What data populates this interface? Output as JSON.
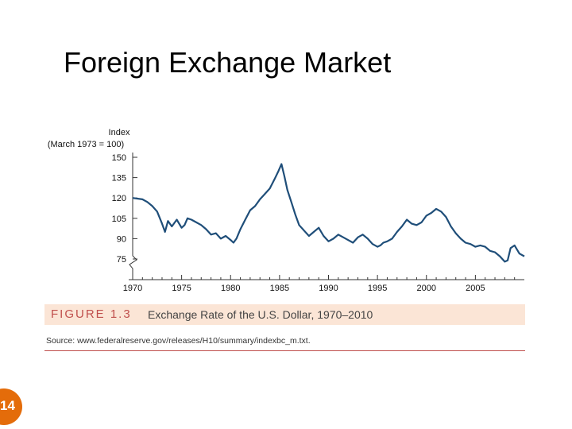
{
  "slide": {
    "title": "Foreign Exchange Market",
    "page_number": "14"
  },
  "figure": {
    "label": "FIGURE 1.3",
    "caption": "Exchange Rate of the U.S. Dollar, 1970–2010",
    "source": "Source: www.federalreserve.gov/releases/H10/summary/indexbc_m.txt."
  },
  "colors": {
    "line": "#1f4e79",
    "band": "#fbe5d6",
    "accent": "#c0504d",
    "badge": "#e46c0a"
  },
  "chart_data": {
    "type": "line",
    "title": "",
    "ylabel": "Index",
    "ylabel_sub": "(March 1973 = 100)",
    "xlim": [
      1970,
      2010
    ],
    "ylim": [
      70,
      155
    ],
    "xticks": [
      "1970",
      "1975",
      "1980",
      "1985",
      "1990",
      "1995",
      "2000",
      "2005"
    ],
    "yticks": [
      "150",
      "135",
      "120",
      "105",
      "90",
      "75"
    ],
    "axis_break": true,
    "grid": false,
    "series": [
      {
        "name": "",
        "x": [
          1970.0,
          1971.0,
          1971.5,
          1972.0,
          1972.5,
          1973.0,
          1973.3,
          1973.6,
          1974.0,
          1974.5,
          1975.0,
          1975.3,
          1975.6,
          1976.0,
          1976.5,
          1977.0,
          1977.5,
          1978.0,
          1978.5,
          1979.0,
          1979.5,
          1980.0,
          1980.3,
          1980.6,
          1981.0,
          1981.5,
          1982.0,
          1982.5,
          1983.0,
          1983.5,
          1984.0,
          1984.5,
          1984.9,
          1985.2,
          1985.5,
          1985.8,
          1986.2,
          1986.6,
          1987.0,
          1987.5,
          1988.0,
          1988.5,
          1989.0,
          1989.5,
          1990.0,
          1990.5,
          1991.0,
          1991.5,
          1992.0,
          1992.5,
          1993.0,
          1993.5,
          1994.0,
          1994.5,
          1995.0,
          1995.3,
          1995.6,
          1996.0,
          1996.5,
          1997.0,
          1997.5,
          1998.0,
          1998.5,
          1999.0,
          1999.5,
          2000.0,
          2000.5,
          2001.0,
          2001.5,
          2002.0,
          2002.5,
          2003.0,
          2003.5,
          2004.0,
          2004.5,
          2005.0,
          2005.5,
          2006.0,
          2006.5,
          2007.0,
          2007.5,
          2008.0,
          2008.3,
          2008.6,
          2009.0,
          2009.5,
          2010.0
        ],
        "values": [
          120,
          119,
          117,
          114,
          110,
          101,
          95,
          103,
          99,
          104,
          98,
          100,
          105,
          104,
          102,
          100,
          97,
          93,
          94,
          90,
          92,
          89,
          87,
          90,
          97,
          104,
          111,
          114,
          119,
          123,
          127,
          134,
          140,
          145,
          136,
          126,
          117,
          108,
          100,
          96,
          92,
          95,
          98,
          92,
          88,
          90,
          93,
          91,
          89,
          87,
          91,
          93,
          90,
          86,
          84,
          85,
          87,
          88,
          90,
          95,
          99,
          104,
          101,
          100,
          102,
          107,
          109,
          112,
          110,
          106,
          99,
          94,
          90,
          87,
          86,
          84,
          85,
          84,
          81,
          80,
          77,
          73,
          74,
          83,
          85,
          79,
          77
        ]
      }
    ]
  }
}
